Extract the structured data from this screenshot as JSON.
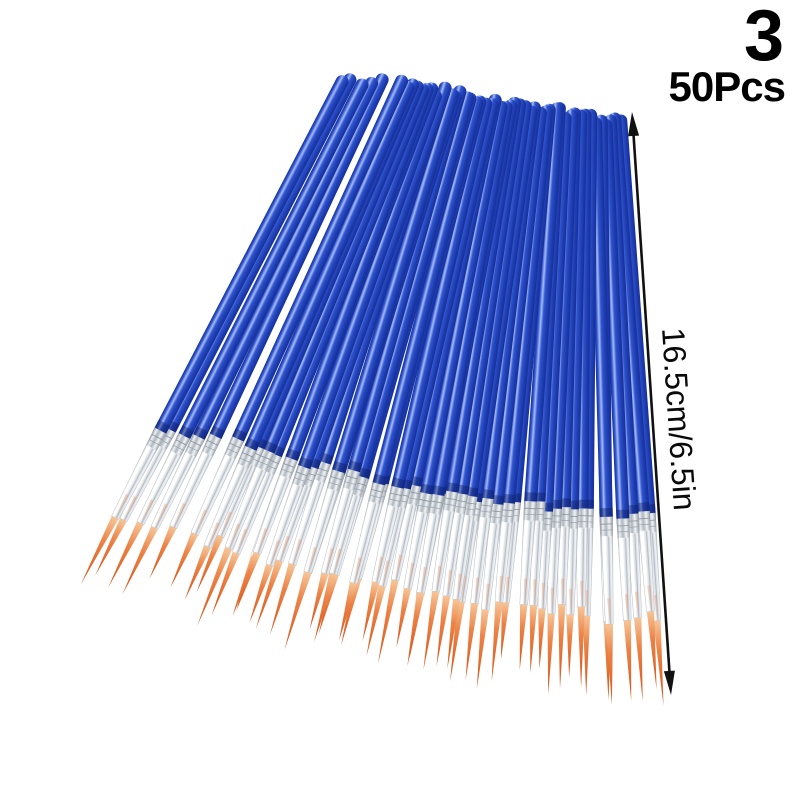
{
  "badge": {
    "count_number": "3",
    "quantity_label": "50Pcs"
  },
  "dimension": {
    "label": "16.5cm/6.5in"
  },
  "product": {
    "description": "Bundle of 50 blue fine-tip detail paint brushes fanned out on white background",
    "brush_count": 50,
    "colors": {
      "handle_dark": "#16309a",
      "handle_main": "#2f55cf",
      "handle_highlight": "#a8bbf4",
      "handle_shadow": "#1e3cae",
      "ferrule_light": "#ffffff",
      "ferrule_shade": "#cdd3d9",
      "crimp_shade": "#99a1ab",
      "bristle_light": "#f6c598",
      "bristle_main": "#ec8347",
      "bristle_deep": "#c4511e",
      "arrow_ink": "#111111"
    }
  }
}
